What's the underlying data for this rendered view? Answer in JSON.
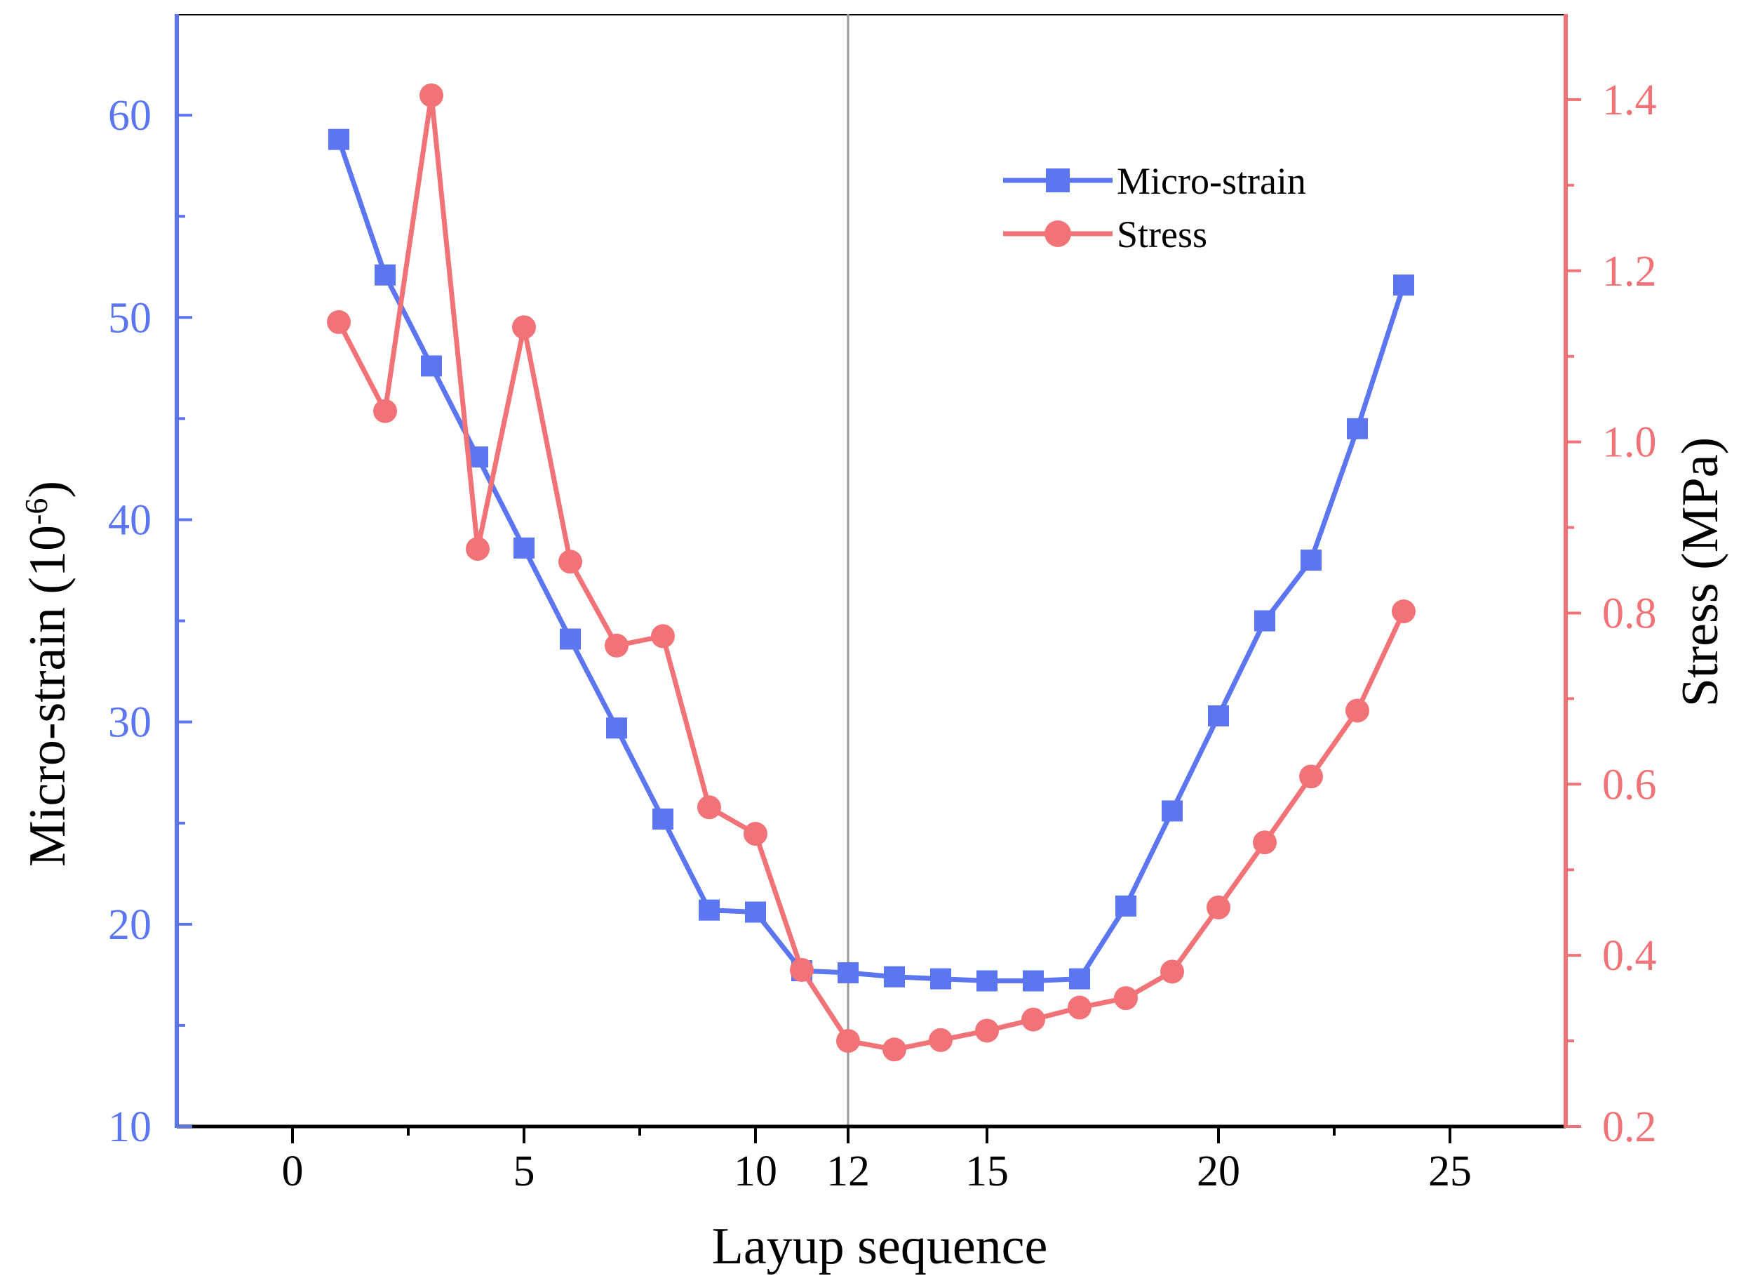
{
  "colors": {
    "strain": "#5b76f0",
    "stress": "#f27377",
    "axis": "#000000",
    "refline": "#999999"
  },
  "chart_data": {
    "type": "line",
    "title": "",
    "xlabel": "Layup sequence",
    "ylabel_left": "Micro-strain (10",
    "ylabel_left_exp": "-6",
    "ylabel_left_close": ")",
    "ylabel_right": "Stress (MPa)",
    "xlim": [
      -2.5,
      27.5
    ],
    "ylim_left": [
      10,
      65
    ],
    "ylim_right": [
      0.2,
      1.5
    ],
    "x_ticks": [
      "0",
      "5",
      "10",
      "12",
      "15",
      "20",
      "25"
    ],
    "x_tick_values": [
      0,
      5,
      10,
      12,
      15,
      20,
      25
    ],
    "y_left_ticks": [
      "10",
      "20",
      "30",
      "40",
      "50",
      "60"
    ],
    "y_left_tick_values": [
      10,
      20,
      30,
      40,
      50,
      60
    ],
    "y_right_ticks": [
      "0.2",
      "0.4",
      "0.6",
      "0.8",
      "1.0",
      "1.2",
      "1.4"
    ],
    "y_right_tick_values": [
      0.2,
      0.4,
      0.6,
      0.8,
      1.0,
      1.2,
      1.4
    ],
    "reference_line_x": 12,
    "legend_position": "top-right",
    "x": [
      1,
      2,
      3,
      4,
      5,
      6,
      7,
      8,
      9,
      10,
      11,
      12,
      13,
      14,
      15,
      16,
      17,
      18,
      19,
      20,
      21,
      22,
      23,
      24
    ],
    "series": [
      {
        "name": "Micro-strain",
        "axis": "left",
        "marker": "square",
        "values": [
          58.8,
          52.1,
          47.6,
          43.1,
          38.6,
          34.1,
          29.7,
          25.2,
          20.7,
          20.6,
          17.7,
          17.6,
          17.4,
          17.3,
          17.2,
          17.2,
          17.3,
          20.9,
          25.6,
          30.3,
          35.0,
          38.0,
          44.5,
          51.6
        ]
      },
      {
        "name": "Stress",
        "axis": "right",
        "marker": "circle",
        "values": [
          1.14,
          1.036,
          1.405,
          0.875,
          1.134,
          0.86,
          0.762,
          0.773,
          0.573,
          0.542,
          0.383,
          0.3,
          0.29,
          0.301,
          0.312,
          0.325,
          0.339,
          0.35,
          0.381,
          0.456,
          0.532,
          0.609,
          0.686,
          0.802
        ]
      }
    ]
  }
}
